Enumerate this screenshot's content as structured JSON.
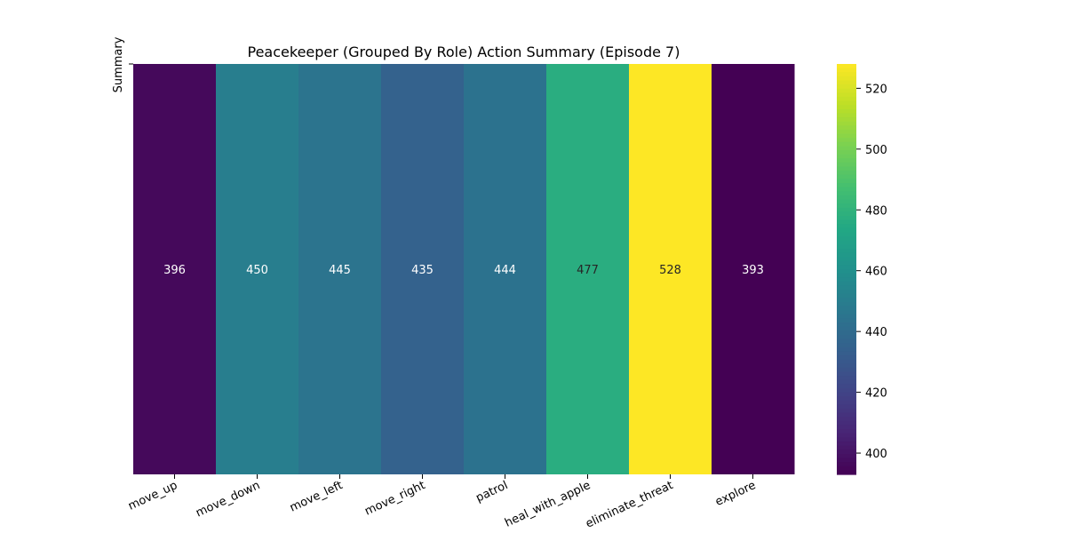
{
  "chart_data": {
    "type": "heatmap",
    "title": "Peacekeeper (Grouped By Role) Action Summary (Episode 7)",
    "ylabel": "Summary",
    "xlabel": "",
    "categories": [
      "move_up",
      "move_down",
      "move_left",
      "move_right",
      "patrol",
      "heal_with_apple",
      "eliminate_threat",
      "explore"
    ],
    "values": [
      396,
      450,
      445,
      435,
      444,
      477,
      528,
      393
    ],
    "colormap": "viridis",
    "vmin": 393,
    "vmax": 528,
    "colorbar_ticks": [
      400,
      420,
      440,
      460,
      480,
      500,
      520
    ],
    "grid": false,
    "colorbar_position": "right"
  }
}
